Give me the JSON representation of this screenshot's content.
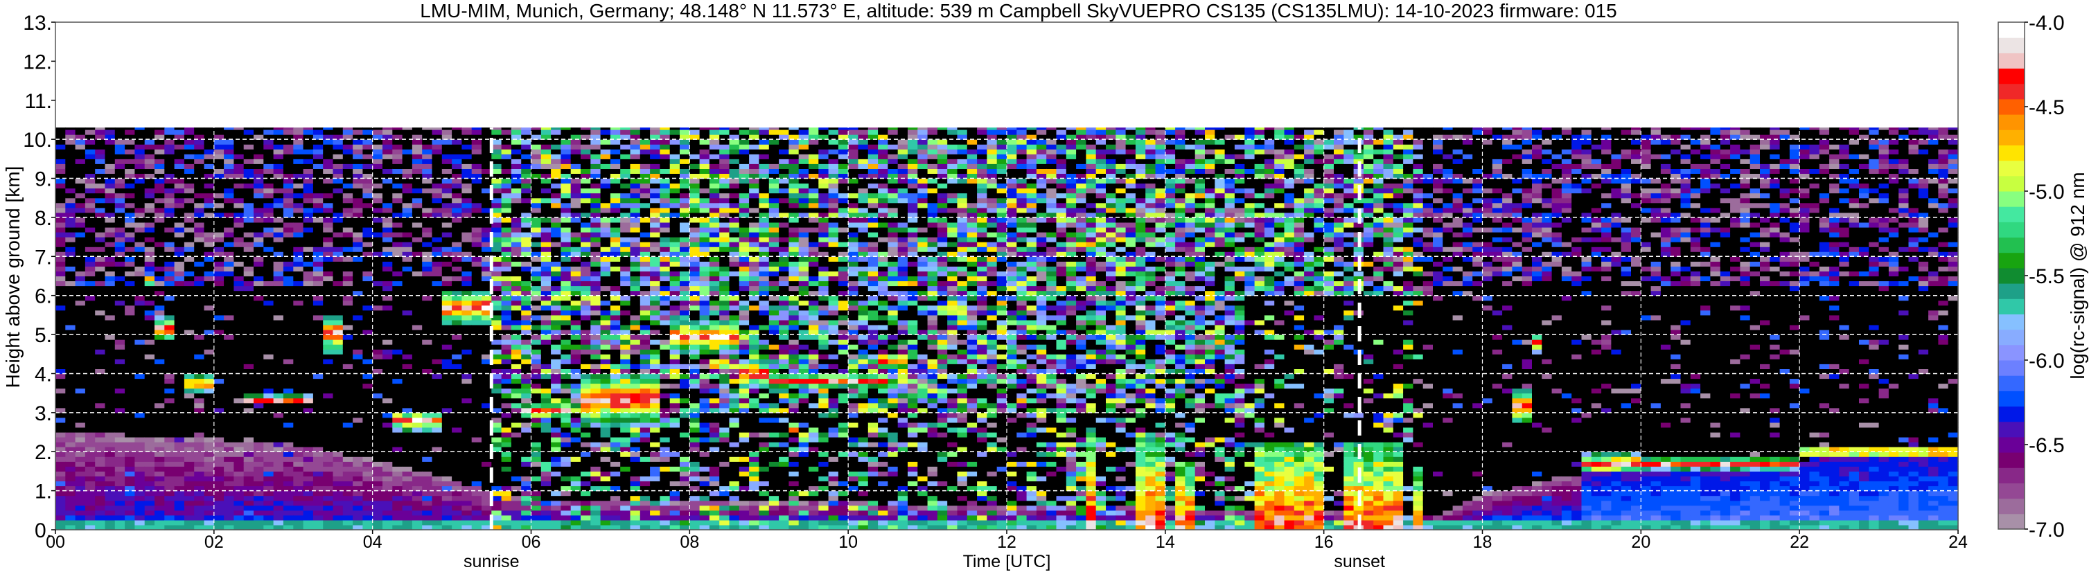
{
  "title": "LMU-MIM, Munich, Germany; 48.148° N 11.573° E, altitude: 539 m    Campbell SkyVUEPRO CS135 (CS135LMU): 14-10-2023    firmware: 015",
  "chart_data": {
    "type": "heatmap",
    "xlabel": "Time [UTC]",
    "ylabel": "Height above ground [km]",
    "xlim": [
      0,
      24
    ],
    "ylim": [
      0,
      13
    ],
    "x_ticks": [
      "00",
      "02",
      "04",
      "06",
      "08",
      "10",
      "12",
      "14",
      "16",
      "18",
      "20",
      "22",
      "24"
    ],
    "x_tick_values": [
      0,
      2,
      4,
      6,
      8,
      10,
      12,
      14,
      16,
      18,
      20,
      22,
      24
    ],
    "y_ticks": [
      "0.",
      "1.",
      "2.",
      "3.",
      "4.",
      "5.",
      "6.",
      "7.",
      "8.",
      "9.",
      "10.",
      "11.",
      "12.",
      "13."
    ],
    "y_tick_values": [
      0,
      1,
      2,
      3,
      4,
      5,
      6,
      7,
      8,
      9,
      10,
      11,
      12,
      13
    ],
    "grid": true,
    "data_top_km": 10.3,
    "annotations": [
      {
        "text": "sunrise",
        "time": 5.5
      },
      {
        "text": "sunset",
        "time": 16.45
      }
    ],
    "colorbar": {
      "label": "log(rc-signal) @ 912 nm",
      "range": [
        -7.0,
        -4.0
      ],
      "ticks": [
        "-7.0",
        "-6.5",
        "-6.0",
        "-5.5",
        "-5.0",
        "-4.5",
        "-4.0"
      ],
      "tick_values": [
        -7.0,
        -6.5,
        -6.0,
        -5.5,
        -5.0,
        -4.5,
        -4.0
      ],
      "colors": [
        "#a890a8",
        "#9c6c9c",
        "#944894",
        "#882888",
        "#780070",
        "#6a0098",
        "#4a10b8",
        "#0018e8",
        "#0050ff",
        "#3468ff",
        "#6c80ff",
        "#8a94ff",
        "#88acff",
        "#86c0ff",
        "#30c8a8",
        "#1ea088",
        "#108c30",
        "#18a410",
        "#22c050",
        "#30d880",
        "#44e8a0",
        "#88ff80",
        "#c8ff40",
        "#e8ff40",
        "#ffe400",
        "#ffb000",
        "#ff9400",
        "#ff6000",
        "#f02828",
        "#ff0000",
        "#f0c4c4",
        "#ece4e4",
        "#ffffff"
      ],
      "below_range_color": "#000000"
    },
    "aerosol_layer_top_km": {
      "times": [
        0,
        1.5,
        3,
        4.5,
        5.5,
        6,
        8,
        10,
        12,
        14,
        15,
        17.5,
        18,
        19,
        20,
        22,
        24
      ],
      "heights": [
        2.5,
        2.4,
        2.2,
        1.6,
        1.0,
        0.8,
        0.7,
        0.7,
        0.6,
        0.6,
        0.5,
        0.4,
        0.9,
        1.4,
        1.6,
        1.8,
        2.0
      ]
    },
    "cloud_layers": [
      {
        "start": 1.3,
        "end": 1.55,
        "base_km": 4.9,
        "top_km": 5.4
      },
      {
        "start": 1.15,
        "end": 1.3,
        "base_km": 6.3,
        "top_km": 6.5
      },
      {
        "start": 1.6,
        "end": 2.0,
        "base_km": 3.6,
        "top_km": 3.9
      },
      {
        "start": 2.4,
        "end": 3.25,
        "base_km": 3.25,
        "top_km": 3.4
      },
      {
        "start": 3.4,
        "end": 3.6,
        "base_km": 4.6,
        "top_km": 5.5
      },
      {
        "start": 4.2,
        "end": 4.9,
        "base_km": 2.6,
        "top_km": 3.0
      },
      {
        "start": 4.9,
        "end": 5.5,
        "base_km": 5.3,
        "top_km": 6.1
      },
      {
        "start": 5.9,
        "end": 6.5,
        "base_km": 2.9,
        "top_km": 3.2
      },
      {
        "start": 6.6,
        "end": 7.6,
        "base_km": 2.7,
        "top_km": 4.0
      },
      {
        "start": 7.7,
        "end": 8.6,
        "base_km": 4.6,
        "top_km": 5.3
      },
      {
        "start": 8.6,
        "end": 9.0,
        "base_km": 3.7,
        "top_km": 4.3
      },
      {
        "start": 9.0,
        "end": 10.5,
        "base_km": 3.7,
        "top_km": 3.95
      },
      {
        "start": 9.2,
        "end": 9.4,
        "base_km": 2.5,
        "top_km": 2.7
      },
      {
        "start": 10.4,
        "end": 10.7,
        "base_km": 4.2,
        "top_km": 4.5
      },
      {
        "start": 11.1,
        "end": 11.5,
        "base_km": 5.55,
        "top_km": 5.7
      },
      {
        "start": 13.6,
        "end": 13.8,
        "base_km": 5.6,
        "top_km": 5.75
      },
      {
        "start": 18.35,
        "end": 18.65,
        "base_km": 2.8,
        "top_km": 3.6
      },
      {
        "start": 18.6,
        "end": 18.8,
        "base_km": 4.6,
        "top_km": 5.0
      },
      {
        "start": 19.3,
        "end": 20.0,
        "base_km": 1.5,
        "top_km": 1.9
      },
      {
        "start": 20.0,
        "end": 22.0,
        "base_km": 1.6,
        "top_km": 1.8
      },
      {
        "start": 22.0,
        "end": 24.0,
        "base_km": 1.9,
        "top_km": 2.1
      }
    ],
    "precipitation": [
      {
        "start": 13.0,
        "end": 13.1,
        "top_km": 2.6
      },
      {
        "start": 13.6,
        "end": 14.0,
        "top_km": 2.4
      },
      {
        "start": 14.1,
        "end": 14.4,
        "top_km": 1.8
      },
      {
        "start": 15.1,
        "end": 16.0,
        "top_km": 2.3
      },
      {
        "start": 16.3,
        "end": 17.0,
        "top_km": 2.2
      },
      {
        "start": 17.1,
        "end": 17.3,
        "top_km": 1.6
      }
    ]
  }
}
